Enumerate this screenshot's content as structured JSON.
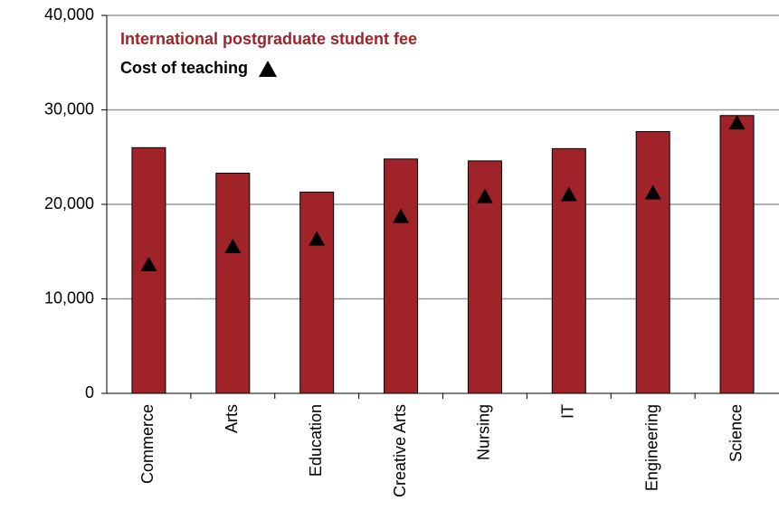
{
  "chart_data": {
    "type": "bar",
    "categories": [
      "Commerce",
      "Arts",
      "Education",
      "Creative Arts",
      "Nursing",
      "IT",
      "Engineering",
      "Science"
    ],
    "series": [
      {
        "name": "International postgraduate student fee",
        "color": "#a0232a",
        "values": [
          26000,
          23300,
          21300,
          24800,
          24600,
          25900,
          27700,
          29400
        ]
      },
      {
        "name": "Cost of teaching",
        "color": "#000000",
        "marker": "triangle",
        "values": [
          13600,
          15500,
          16300,
          18700,
          20800,
          21000,
          21200,
          28600
        ]
      }
    ],
    "ylim": [
      0,
      40000
    ],
    "yticks": [
      0,
      {
        "value": 10000,
        "label": "10,000"
      },
      {
        "value": 20000,
        "label": "20,000"
      },
      {
        "value": 30000,
        "label": "30,000"
      },
      {
        "value": 40000,
        "label": "40,000"
      }
    ],
    "grid": true
  }
}
